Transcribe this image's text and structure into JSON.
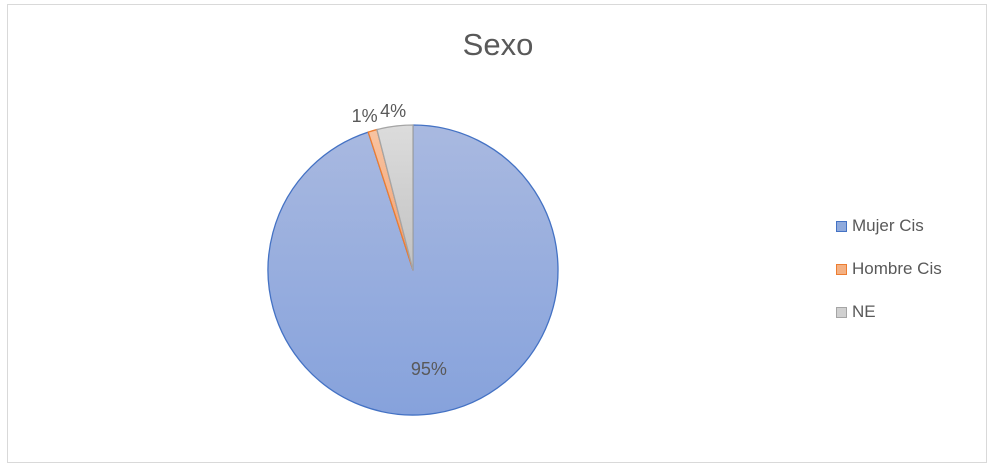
{
  "chart_data": {
    "type": "pie",
    "title": "Sexo",
    "categories": [
      "Mujer Cis",
      "Hombre Cis",
      "NE"
    ],
    "values": [
      95,
      1,
      4
    ],
    "data_labels": [
      "95%",
      "1%",
      "4%"
    ],
    "colors": [
      "#8faadc",
      "#f4b183",
      "#d0d0d0"
    ],
    "border_colors": [
      "#4472c4",
      "#ed7d31",
      "#a5a5a5"
    ],
    "legend_position": "right"
  }
}
